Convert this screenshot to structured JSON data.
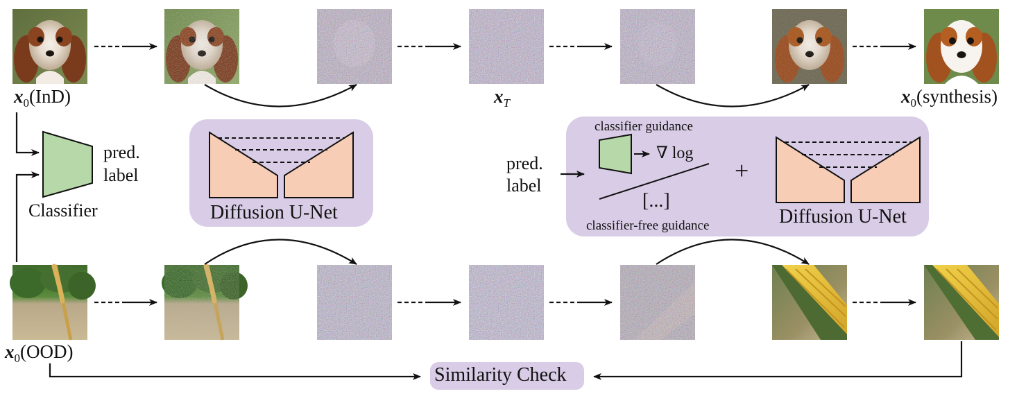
{
  "labels": {
    "x0_ind_sym": "x",
    "x0_ind_sub": "0",
    "x0_ind_tag": "(InD)",
    "xt_sym": "x",
    "xt_sub": "T",
    "x0_syn_sym": "x",
    "x0_syn_sub": "0",
    "x0_syn_tag": "(synthesis)",
    "x0_ood_sym": "x",
    "x0_ood_sub": "0",
    "x0_ood_tag": "(OOD)"
  },
  "classifier_block": {
    "pred": "pred.",
    "label": "label",
    "name": "Classifier"
  },
  "unet_left": {
    "name": "Diffusion U-Net"
  },
  "guidance_panel": {
    "input_pred": "pred.",
    "input_label": "label",
    "classifier_guidance": "classifier guidance",
    "grad_log": "∇ log",
    "ellipsis": "[...]",
    "classifier_free_guidance": "classifier-free guidance",
    "plus": "+",
    "unet_name": "Diffusion U-Net"
  },
  "similarity": {
    "label": "Similarity Check"
  },
  "colors": {
    "panel_bg": "#d9cce6",
    "unet_fill": "#f8cdb6",
    "classifier_fill": "#b7d9a9",
    "ink": "#111111"
  },
  "images": {
    "top_row": [
      "dog-clean",
      "dog-slightly-noisy",
      "dog-noisy",
      "noise",
      "noise",
      "dog-denoised",
      "dog-synthesis"
    ],
    "bottom_row": [
      "wheat-field",
      "wheat-field-slightly-noisy",
      "noise",
      "noise",
      "noisy-corn",
      "corn-denoised",
      "corn-synthesis"
    ]
  }
}
